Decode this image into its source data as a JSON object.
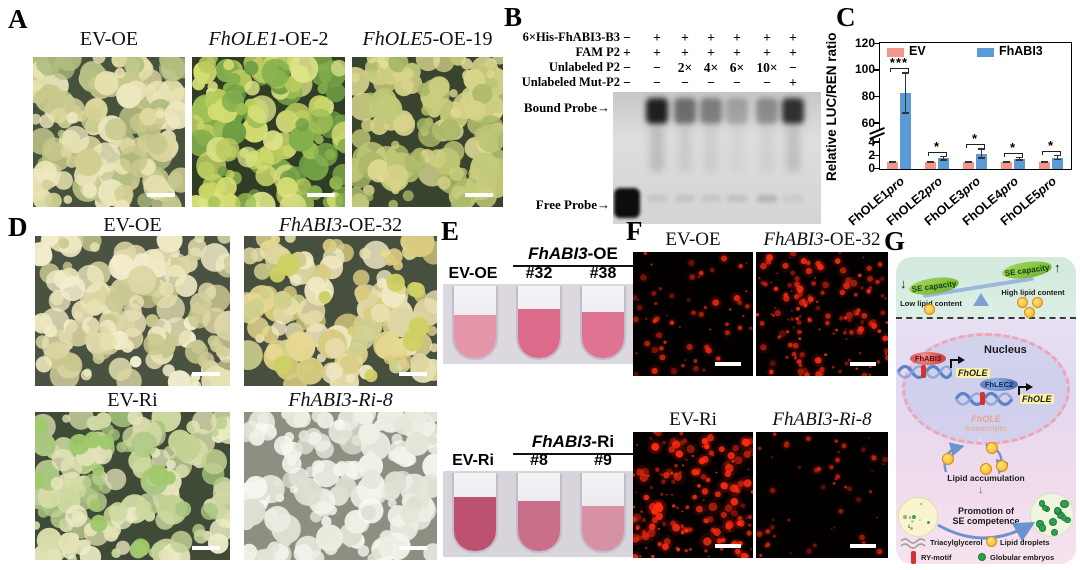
{
  "panel_labels": {
    "a": "A",
    "b": "B",
    "c": "C",
    "d": "D",
    "e": "E",
    "f": "F",
    "g": "G"
  },
  "panel_a": {
    "images": [
      {
        "title_italic": "",
        "title_rest": "EV-OE",
        "bg": "#47523d",
        "palette": [
          "#e9e3b2",
          "#ded79f",
          "#d2cf92",
          "#c6c98b",
          "#b0bd80",
          "#ece7bd"
        ]
      },
      {
        "title_italic": "FhOLE1",
        "title_rest": "-OE-2",
        "bg": "#2f3c26",
        "palette": [
          "#b8cb5e",
          "#a0c055",
          "#83af4c",
          "#d4dd72",
          "#c9d467",
          "#6f9d45",
          "#dde387"
        ]
      },
      {
        "title_italic": "FhOLE5",
        "title_rest": "-OE-19",
        "bg": "#39442e",
        "palette": [
          "#d8d48a",
          "#cbcd7e",
          "#bdc574",
          "#a9b867",
          "#e2dd96",
          "#c2ca79"
        ]
      }
    ]
  },
  "panel_b": {
    "rows": [
      {
        "label": "6×His-FhABI3-B3",
        "symbols": [
          "−",
          "+",
          "+",
          "+",
          "+",
          "+",
          "+"
        ]
      },
      {
        "label": "FAM P2",
        "symbols": [
          "+",
          "+",
          "+",
          "+",
          "+",
          "+",
          "+"
        ]
      },
      {
        "label": "Unlabeled P2",
        "symbols": [
          "−",
          "−",
          "2×",
          "4×",
          "6×",
          "10×",
          "−"
        ]
      },
      {
        "label": "Unlabeled Mut-P2",
        "symbols": [
          "−",
          "−",
          "−",
          "−",
          "−",
          "−",
          "+"
        ]
      }
    ],
    "bound_probe_label": "Bound Probe→",
    "free_probe_label": "Free Probe→",
    "bound_intensity": [
      0,
      0.97,
      0.55,
      0.45,
      0.26,
      0.38,
      0.88
    ],
    "free_intensity": [
      1,
      0.1,
      0.12,
      0.1,
      0.14,
      0.22,
      0.08
    ]
  },
  "chart_data": {
    "type": "bar",
    "title": "",
    "ylabel": "Relative LUC/REN ratio",
    "categories": [
      "FhOLE1",
      "FhOLE2",
      "FhOLE3",
      "FhOLE4",
      "FhOLE5"
    ],
    "category_suffix": "pro",
    "series": [
      {
        "name": "EV",
        "color": "#f2958b",
        "values": [
          1,
          1,
          1,
          1,
          1
        ],
        "errors": [
          0.08,
          0.08,
          0.08,
          0.08,
          0.08
        ]
      },
      {
        "name": "FhABI3",
        "color": "#5b9bd5",
        "values": [
          83,
          1.6,
          2.3,
          1.5,
          1.7
        ],
        "errors": [
          15,
          0.3,
          0.7,
          0.2,
          0.3
        ]
      }
    ],
    "significance": [
      "***",
      "*",
      "*",
      "*",
      "*"
    ],
    "y_axis_break": true,
    "yticks_lower": [
      0,
      2,
      4
    ],
    "yticks_upper": [
      60,
      80,
      100,
      120
    ],
    "ylim_lower": [
      0,
      4
    ],
    "ylim_upper": [
      60,
      120
    ],
    "legend_position": "top-inside",
    "grid": false
  },
  "panel_d": {
    "images": [
      {
        "title_italic": "",
        "title_rest": "EV-OE",
        "bg": "#4a5242",
        "palette": [
          "#efe9c2",
          "#e7e0b2",
          "#dcd6a4",
          "#d2cf9a",
          "#c7c78e",
          "#f2edcb"
        ]
      },
      {
        "title_italic": "FhABI3",
        "title_rest": "-OE-32",
        "bg": "#474f3e",
        "palette": [
          "#f0e9c4",
          "#e9dfb0",
          "#ded6a2",
          "#e6d88e",
          "#d9cb80",
          "#cfd08e"
        ],
        "accent": {
          "color": "#cdd163",
          "count": 10,
          "r": 9
        }
      },
      {
        "title_italic": "",
        "title_rest": "EV-Ri",
        "bg": "#3f4a37",
        "palette": [
          "#e3e2b8",
          "#d8dcaa",
          "#c2d193",
          "#a8c77f",
          "#ecebc6",
          "#cdd9a0"
        ],
        "accent": {
          "color": "#9fc96a",
          "count": 11,
          "r": 8
        }
      },
      {
        "title_italic": "FhABI3-Ri-8",
        "title_rest": "",
        "bg": "#8b9082",
        "palette": [
          "#f4f4ec",
          "#ecede2",
          "#e4e6d8",
          "#dde0d0",
          "#f8f8f2",
          "#eff0e6"
        ]
      }
    ]
  },
  "panel_e": {
    "groups": [
      {
        "group_italic": "FhABI3",
        "group_rest": "-OE",
        "control": "EV-OE",
        "reps": [
          "#32",
          "#38"
        ],
        "tube_colors": [
          "#e595a8",
          "#dc6a8a",
          "#de7491"
        ],
        "fills": [
          0.58,
          0.66,
          0.62
        ],
        "bg": "#dcd8e0"
      },
      {
        "group_italic": "FhABI3",
        "group_rest": "-Ri",
        "control": "EV-Ri",
        "reps": [
          "#8",
          "#9"
        ],
        "tube_colors": [
          "#bd5270",
          "#ca6f8a",
          "#d791a5"
        ],
        "fills": [
          0.68,
          0.62,
          0.56
        ],
        "bg": "#d8d4dc"
      }
    ]
  },
  "panel_f": {
    "images": [
      {
        "title_italic": "",
        "title_rest": "EV-OE",
        "dots": 60,
        "max_r": 2.6,
        "brightness": 0.8
      },
      {
        "title_italic": "FhABI3",
        "title_rest": "-OE-32",
        "dots": 150,
        "max_r": 2.8,
        "brightness": 0.9
      },
      {
        "title_italic": "",
        "title_rest": "EV-Ri",
        "dots": 175,
        "max_r": 3.6,
        "brightness": 1.0
      },
      {
        "title_italic": "FhABI3-Ri-8",
        "title_rest": "",
        "dots": 48,
        "max_r": 2.2,
        "brightness": 0.6
      }
    ]
  },
  "panel_g": {
    "se_capacity_left": "SE capacity",
    "se_capacity_right": "SE capacity",
    "arrow_down": "↓",
    "arrow_up": "↑",
    "low_lipid": "Low lipid content",
    "high_lipid": "High lipid content",
    "nucleus": "Nucleus",
    "tf1": "FhABI3",
    "tf2": "FhLEC2",
    "gene1": "FhOLE",
    "gene2": "FhOLE",
    "transcripts_italic": "FhOLE",
    "transcripts_rest": "transcripts",
    "lipid_accumulation": "Lipid accumulation",
    "promotion_line1": "Promotion of",
    "promotion_line2": "SE competence",
    "legend": {
      "triacylglycerol": "Triacylglycerol",
      "lipid_droplets": "Lipid droplets",
      "ry_motif": "RY-motif",
      "globular_embryos": "Globular embryos"
    },
    "colors": {
      "droplet": "#f6c63f",
      "ry": "#d82f2f",
      "embryo": "#2ea04e",
      "dna": "#5b82c8"
    }
  }
}
